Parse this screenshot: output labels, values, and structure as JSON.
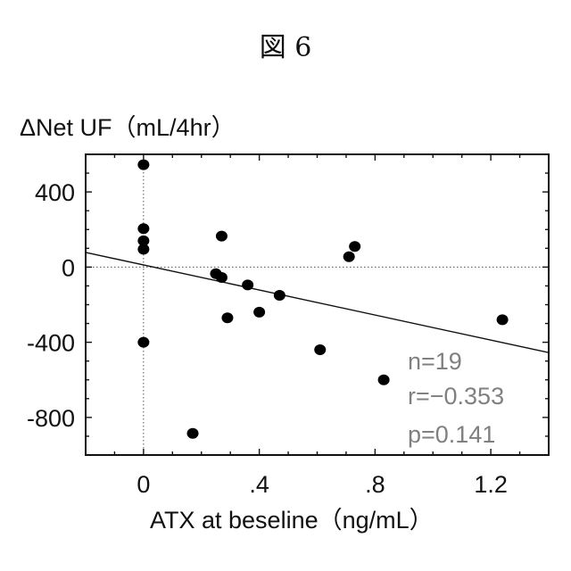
{
  "figure": {
    "caption": "図 6"
  },
  "chart_data": {
    "type": "scatter",
    "ylabel": "ΔNet UF（mL/4hr）",
    "xlabel": "ATX at beseline（ng/mL）",
    "xlim": [
      -0.2,
      1.4
    ],
    "ylim": [
      -1000,
      600
    ],
    "x_ticks": [
      0,
      0.4,
      0.8,
      1.2
    ],
    "x_tick_labels": [
      "0",
      ".4",
      ".8",
      "1.2"
    ],
    "y_ticks": [
      400,
      0,
      -400,
      -800
    ],
    "y_tick_labels": [
      "400",
      "0",
      "-400",
      "-800"
    ],
    "grid": false,
    "reference_lines": {
      "x": 0,
      "y": 0
    },
    "points": [
      {
        "x": 0.0,
        "y": 545
      },
      {
        "x": 0.0,
        "y": 205
      },
      {
        "x": 0.0,
        "y": 140
      },
      {
        "x": 0.0,
        "y": 95
      },
      {
        "x": 0.0,
        "y": -400
      },
      {
        "x": 0.17,
        "y": -885
      },
      {
        "x": 0.25,
        "y": -35
      },
      {
        "x": 0.27,
        "y": -55
      },
      {
        "x": 0.27,
        "y": 165
      },
      {
        "x": 0.29,
        "y": -270
      },
      {
        "x": 0.36,
        "y": -95
      },
      {
        "x": 0.4,
        "y": -240
      },
      {
        "x": 0.47,
        "y": -150
      },
      {
        "x": 0.61,
        "y": -440
      },
      {
        "x": 0.71,
        "y": 55
      },
      {
        "x": 0.73,
        "y": 110
      },
      {
        "x": 0.83,
        "y": -600
      },
      {
        "x": 1.24,
        "y": -280
      }
    ],
    "regression_line": {
      "x": [
        -0.2,
        1.4
      ],
      "y": [
        78,
        -455
      ]
    },
    "annotations": {
      "n": "n=19",
      "r": "r=−0.353",
      "p": "p=0.141"
    }
  }
}
